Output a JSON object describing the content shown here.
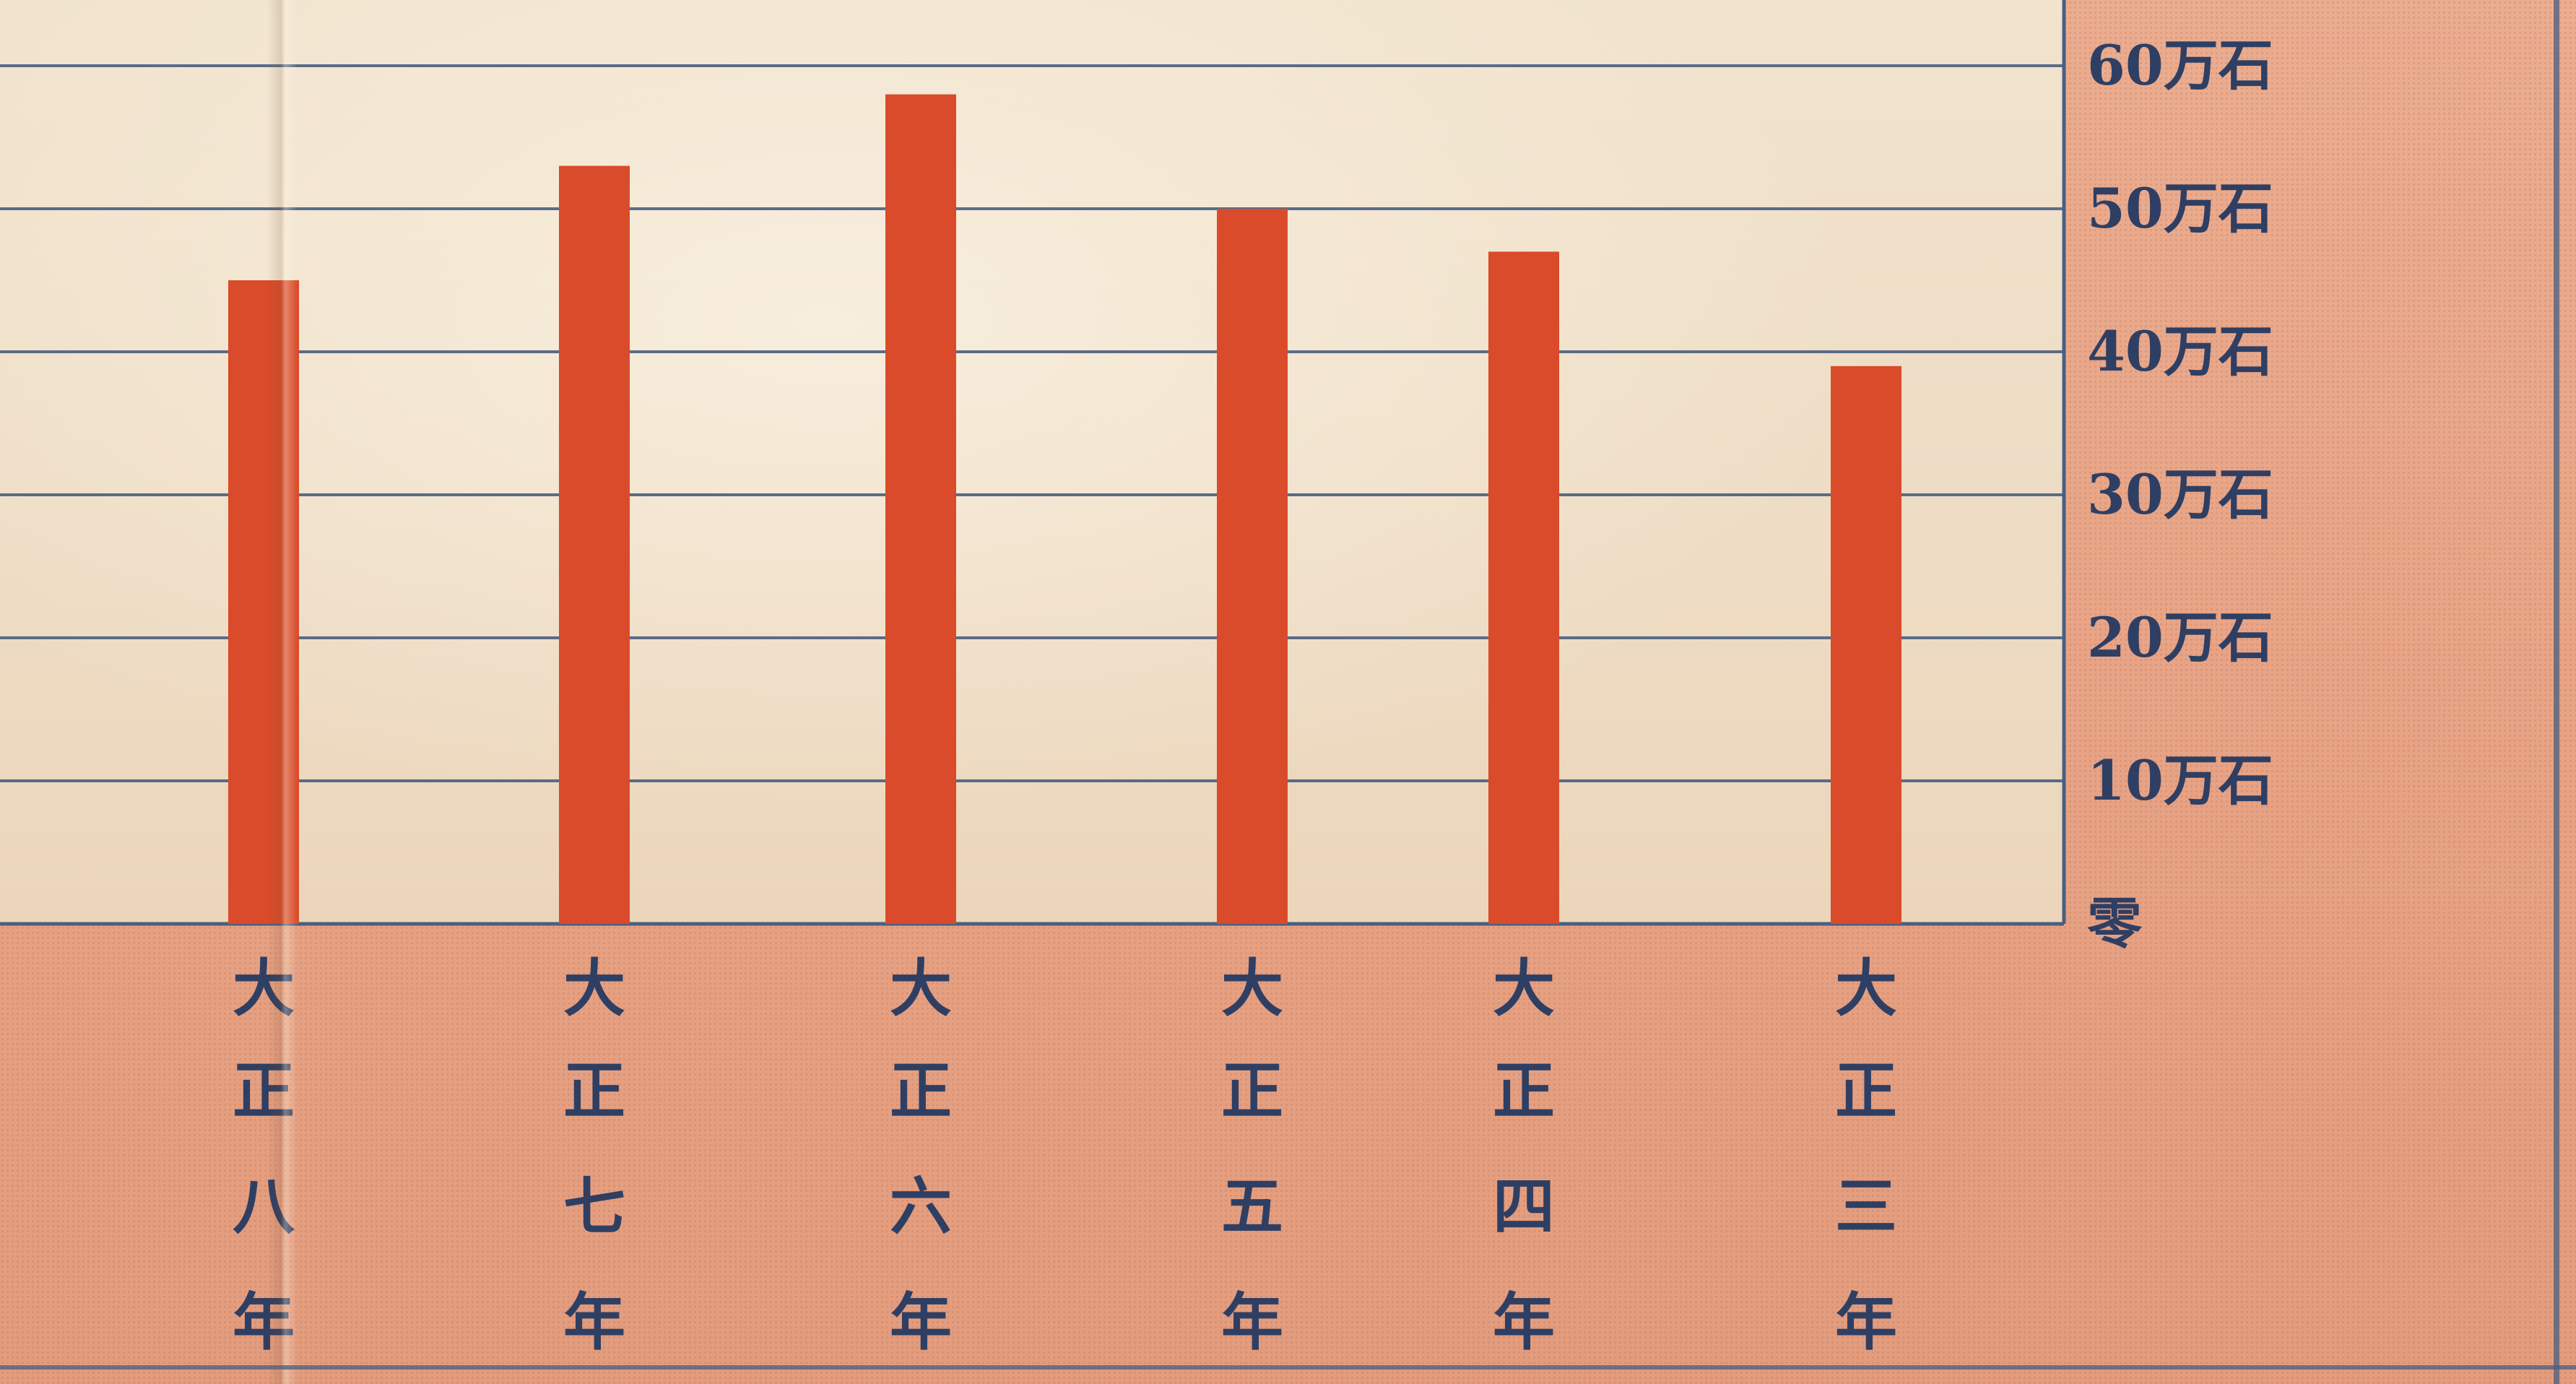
{
  "chart_data": {
    "type": "bar",
    "orientation": "vertical",
    "categories": [
      "大正八年",
      "大正七年",
      "大正六年",
      "大正五年",
      "大正四年",
      "大正三年"
    ],
    "values": [
      45,
      53,
      58,
      50,
      47,
      39
    ],
    "units": "万石",
    "ylim": [
      0,
      65
    ],
    "y_ticks": [
      {
        "value": 0,
        "label": "零"
      },
      {
        "value": 10,
        "label": "10万石"
      },
      {
        "value": 20,
        "label": "20万石"
      },
      {
        "value": 30,
        "label": "30万石"
      },
      {
        "value": 40,
        "label": "40万石"
      },
      {
        "value": 50,
        "label": "50万石"
      },
      {
        "value": 60,
        "label": "60万石"
      }
    ],
    "y_axis_side": "right",
    "grid": true,
    "category_label_orientation": "vertical",
    "colors": {
      "bar": "#d94b2a",
      "grid": "#4a5f80",
      "label": "#2f3f63",
      "plot_background": "#efdfc7",
      "page_background": "#e8a788"
    }
  }
}
